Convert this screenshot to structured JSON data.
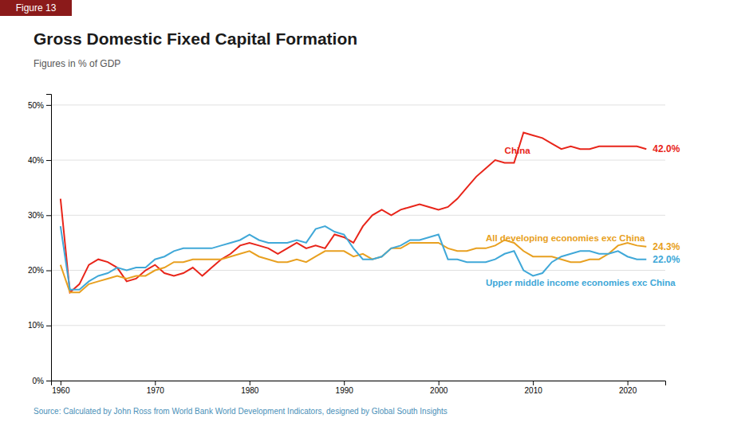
{
  "chart_data": {
    "type": "line",
    "title": "Gross Domestic Fixed Capital Formation",
    "subtitle": "Figures in % of GDP",
    "figure_label": "Figure 13",
    "source": "Source: Calculated by John Ross from World Bank World Development Indicators, designed by Global South Insights",
    "x": [
      1960,
      1961,
      1962,
      1963,
      1964,
      1965,
      1966,
      1967,
      1968,
      1969,
      1970,
      1971,
      1972,
      1973,
      1974,
      1975,
      1976,
      1977,
      1978,
      1979,
      1980,
      1981,
      1982,
      1983,
      1984,
      1985,
      1986,
      1987,
      1988,
      1989,
      1990,
      1991,
      1992,
      1993,
      1994,
      1995,
      1996,
      1997,
      1998,
      1999,
      2000,
      2001,
      2002,
      2003,
      2004,
      2005,
      2006,
      2007,
      2008,
      2009,
      2010,
      2011,
      2012,
      2013,
      2014,
      2015,
      2016,
      2017,
      2018,
      2019,
      2020,
      2021,
      2022
    ],
    "series": [
      {
        "name": "China",
        "color": "#e8251a",
        "values": [
          33.0,
          16.0,
          17.5,
          21.0,
          22.0,
          21.5,
          20.5,
          18.0,
          18.5,
          20.0,
          21.0,
          19.5,
          19.0,
          19.5,
          20.5,
          19.0,
          20.5,
          22.0,
          23.0,
          24.5,
          25.0,
          24.5,
          24.0,
          23.0,
          24.0,
          25.0,
          24.0,
          24.5,
          24.0,
          26.5,
          26.0,
          25.0,
          28.0,
          30.0,
          31.0,
          30.0,
          31.0,
          31.5,
          32.0,
          31.5,
          31.0,
          31.5,
          33.0,
          35.0,
          37.0,
          38.5,
          40.0,
          39.5,
          39.5,
          45.0,
          44.5,
          44.0,
          43.0,
          42.0,
          42.5,
          42.0,
          42.0,
          42.5,
          42.5,
          42.5,
          42.5,
          42.5,
          42.0
        ],
        "value_labels": [
          null,
          null,
          null,
          null,
          null,
          null,
          null,
          null,
          null,
          null,
          null,
          null,
          null,
          null,
          null,
          null,
          null,
          null,
          null,
          null,
          null,
          null,
          null,
          null,
          null,
          null,
          null,
          null,
          null,
          null,
          null,
          null,
          null,
          null,
          null,
          null,
          null,
          null,
          null,
          null,
          null,
          null,
          null,
          null,
          null,
          null,
          null,
          null,
          null,
          null,
          null,
          null,
          null,
          null,
          null,
          null,
          null,
          null,
          null,
          null,
          null,
          null,
          "42.0%"
        ]
      },
      {
        "name": "All developing economies exc China",
        "color": "#e8a020",
        "values": [
          21.0,
          16.0,
          16.0,
          17.5,
          18.0,
          18.5,
          19.0,
          18.5,
          19.0,
          19.0,
          20.0,
          20.5,
          21.5,
          21.5,
          22.0,
          22.0,
          22.0,
          22.0,
          22.5,
          23.0,
          23.5,
          22.5,
          22.0,
          21.5,
          21.5,
          22.0,
          21.5,
          22.5,
          23.5,
          23.5,
          23.5,
          22.5,
          23.0,
          22.0,
          22.5,
          24.0,
          24.0,
          25.0,
          25.0,
          25.0,
          25.0,
          24.0,
          23.5,
          23.5,
          24.0,
          24.0,
          24.5,
          25.5,
          25.0,
          23.5,
          22.5,
          22.5,
          22.5,
          22.0,
          21.5,
          21.5,
          22.0,
          22.0,
          23.0,
          24.5,
          25.0,
          24.5,
          24.3
        ],
        "value_labels": [
          null,
          null,
          null,
          null,
          null,
          null,
          null,
          null,
          null,
          null,
          null,
          null,
          null,
          null,
          null,
          null,
          null,
          null,
          null,
          null,
          null,
          null,
          null,
          null,
          null,
          null,
          null,
          null,
          null,
          null,
          null,
          null,
          null,
          null,
          null,
          null,
          null,
          null,
          null,
          null,
          null,
          null,
          null,
          null,
          null,
          null,
          null,
          null,
          null,
          null,
          null,
          null,
          null,
          null,
          null,
          null,
          null,
          null,
          null,
          null,
          null,
          null,
          "24.3%"
        ]
      },
      {
        "name": "Upper middle income economies exc China",
        "color": "#40a8d8",
        "values": [
          28.0,
          16.5,
          16.5,
          18.0,
          19.0,
          19.5,
          20.5,
          20.0,
          20.5,
          20.5,
          22.0,
          22.5,
          23.5,
          24.0,
          24.0,
          24.0,
          24.0,
          24.5,
          25.0,
          25.5,
          26.5,
          25.5,
          25.0,
          25.0,
          25.0,
          25.5,
          25.0,
          27.5,
          28.0,
          27.0,
          26.5,
          24.0,
          22.0,
          22.0,
          22.5,
          24.0,
          24.5,
          25.5,
          25.5,
          26.0,
          26.5,
          22.0,
          22.0,
          21.5,
          21.5,
          21.5,
          22.0,
          23.0,
          23.5,
          20.0,
          19.0,
          19.5,
          21.5,
          22.5,
          23.0,
          23.5,
          23.5,
          23.0,
          23.0,
          23.5,
          22.5,
          22.0,
          22.0
        ],
        "value_labels": [
          null,
          null,
          null,
          null,
          null,
          null,
          null,
          null,
          null,
          null,
          null,
          null,
          null,
          null,
          null,
          null,
          null,
          null,
          null,
          null,
          null,
          null,
          null,
          null,
          null,
          null,
          null,
          null,
          null,
          null,
          null,
          null,
          null,
          null,
          null,
          null,
          null,
          null,
          null,
          null,
          null,
          null,
          null,
          null,
          null,
          null,
          null,
          null,
          null,
          null,
          null,
          null,
          null,
          null,
          null,
          null,
          null,
          null,
          null,
          null,
          null,
          null,
          "22.0%"
        ]
      }
    ],
    "xlim": [
      1959,
      2024
    ],
    "xticks": [
      1960,
      1970,
      1980,
      1990,
      2000,
      2010,
      2020
    ],
    "ylim": [
      0,
      52
    ],
    "yticks": [
      {
        "value": 0,
        "label": "0%"
      },
      {
        "value": 10,
        "label": "10%"
      },
      {
        "value": 20,
        "label": "20%"
      },
      {
        "value": 30,
        "label": "30%"
      },
      {
        "value": 40,
        "label": "40%"
      },
      {
        "value": 50,
        "label": "50%"
      }
    ],
    "grid": true
  }
}
